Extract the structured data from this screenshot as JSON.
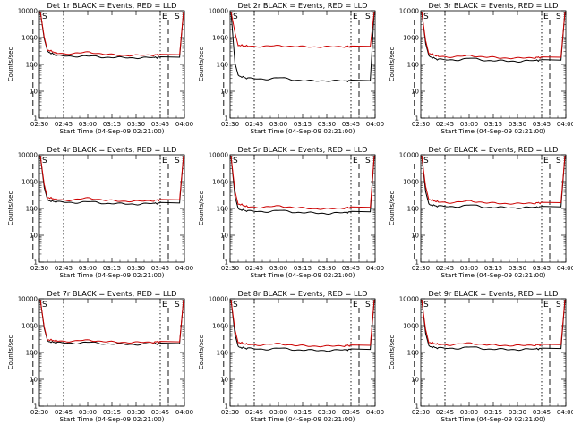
{
  "figure": {
    "xlabel": "Start Time (04-Sep-09 02:21:00)",
    "ylabel": "Counts/sec"
  },
  "chart_data": [
    {
      "type": "line",
      "title": "Det 1r BLACK = Events, RED = LLD",
      "xlabel": "Start Time (04-Sep-09 02:21:00)",
      "ylabel": "Counts/sec",
      "x_ticks": [
        "02:30",
        "02:45",
        "03:00",
        "03:15",
        "03:30",
        "03:45",
        "04:00"
      ],
      "x_range_min": [
        9,
        99
      ],
      "y_ticks": [
        "1",
        "10",
        "100",
        "1000",
        "10000"
      ],
      "ylim": [
        1,
        10000
      ],
      "yscale": "log",
      "markers": [
        "E",
        "S"
      ],
      "series": [
        {
          "label": "BLACK = Events",
          "color": "#000000",
          "x": [
            14,
            20,
            30,
            40,
            50,
            60,
            70,
            80,
            84
          ],
          "values": [
            300,
            210,
            200,
            205,
            185,
            180,
            175,
            180,
            185
          ]
        },
        {
          "label": "RED = LLD",
          "color": "#cc0000",
          "x": [
            14,
            20,
            30,
            40,
            50,
            60,
            70,
            80,
            84
          ],
          "values": [
            350,
            260,
            250,
            290,
            235,
            220,
            215,
            225,
            230
          ]
        }
      ]
    },
    {
      "type": "line",
      "title": "Det 2r BLACK = Events, RED = LLD",
      "xlabel": "Start Time (04-Sep-09 02:21:00)",
      "ylabel": "Counts/sec",
      "x_ticks": [
        "02:30",
        "02:45",
        "03:00",
        "03:15",
        "03:30",
        "03:45",
        "04:00"
      ],
      "x_range_min": [
        9,
        99
      ],
      "y_ticks": [
        "1",
        "10",
        "100",
        "1000",
        "10000"
      ],
      "ylim": [
        1,
        10000
      ],
      "yscale": "log",
      "markers": [
        "E",
        "S"
      ],
      "series": [
        {
          "label": "BLACK = Events",
          "color": "#000000",
          "x": [
            14,
            20,
            30,
            40,
            50,
            60,
            70,
            80,
            84
          ],
          "values": [
            38,
            30,
            28,
            32,
            26,
            24,
            25,
            24,
            25
          ]
        },
        {
          "label": "RED = LLD",
          "color": "#cc0000",
          "x": [
            14,
            20,
            30,
            40,
            50,
            60,
            70,
            80,
            84
          ],
          "values": [
            520,
            480,
            470,
            500,
            460,
            455,
            450,
            465,
            470
          ]
        }
      ]
    },
    {
      "type": "line",
      "title": "Det 3r BLACK = Events, RED = LLD",
      "xlabel": "Start Time (04-Sep-09 02:21:00)",
      "ylabel": "Counts/sec",
      "x_ticks": [
        "02:30",
        "02:45",
        "03:00",
        "03:15",
        "03:30",
        "03:45",
        "04:00"
      ],
      "x_range_min": [
        9,
        99
      ],
      "y_ticks": [
        "1",
        "10",
        "100",
        "1000",
        "10000"
      ],
      "ylim": [
        1,
        10000
      ],
      "yscale": "log",
      "markers": [
        "E",
        "S"
      ],
      "series": [
        {
          "label": "BLACK = Events",
          "color": "#000000",
          "x": [
            14,
            20,
            30,
            40,
            50,
            60,
            70,
            80,
            84
          ],
          "values": [
            200,
            150,
            145,
            170,
            140,
            135,
            130,
            140,
            145
          ]
        },
        {
          "label": "RED = LLD",
          "color": "#cc0000",
          "x": [
            14,
            20,
            30,
            40,
            50,
            60,
            70,
            80,
            84
          ],
          "values": [
            260,
            200,
            190,
            215,
            185,
            175,
            170,
            180,
            185
          ]
        }
      ]
    },
    {
      "type": "line",
      "title": "Det 4r BLACK = Events, RED = LLD",
      "xlabel": "Start Time (04-Sep-09 02:21:00)",
      "ylabel": "Counts/sec",
      "x_ticks": [
        "02:30",
        "02:45",
        "03:00",
        "03:15",
        "03:30",
        "03:45",
        "04:00"
      ],
      "x_range_min": [
        9,
        99
      ],
      "y_ticks": [
        "1",
        "10",
        "100",
        "1000",
        "10000"
      ],
      "ylim": [
        1,
        10000
      ],
      "yscale": "log",
      "markers": [
        "E",
        "S"
      ],
      "series": [
        {
          "label": "BLACK = Events",
          "color": "#000000",
          "x": [
            14,
            20,
            30,
            40,
            50,
            60,
            70,
            80,
            84
          ],
          "values": [
            200,
            175,
            165,
            180,
            155,
            150,
            145,
            155,
            160
          ]
        },
        {
          "label": "RED = LLD",
          "color": "#cc0000",
          "x": [
            14,
            20,
            30,
            40,
            50,
            60,
            70,
            80,
            84
          ],
          "values": [
            260,
            215,
            205,
            250,
            200,
            190,
            185,
            200,
            210
          ]
        }
      ]
    },
    {
      "type": "line",
      "title": "Det 5r BLACK = Events, RED = LLD",
      "xlabel": "Start Time (04-Sep-09 02:21:00)",
      "ylabel": "Counts/sec",
      "x_ticks": [
        "02:30",
        "02:45",
        "03:00",
        "03:15",
        "03:30",
        "03:45",
        "04:00"
      ],
      "x_range_min": [
        9,
        99
      ],
      "y_ticks": [
        "1",
        "10",
        "100",
        "1000",
        "10000"
      ],
      "ylim": [
        1,
        10000
      ],
      "yscale": "log",
      "markers": [
        "E",
        "S"
      ],
      "series": [
        {
          "label": "BLACK = Events",
          "color": "#000000",
          "x": [
            14,
            20,
            30,
            40,
            50,
            60,
            70,
            80,
            84
          ],
          "values": [
            95,
            80,
            75,
            85,
            72,
            68,
            65,
            70,
            75
          ]
        },
        {
          "label": "RED = LLD",
          "color": "#cc0000",
          "x": [
            14,
            20,
            30,
            40,
            50,
            60,
            70,
            80,
            84
          ],
          "values": [
            150,
            115,
            110,
            125,
            105,
            100,
            95,
            105,
            110
          ]
        }
      ]
    },
    {
      "type": "line",
      "title": "Det 6r BLACK = Events, RED = LLD",
      "xlabel": "Start Time (04-Sep-09 02:21:00)",
      "ylabel": "Counts/sec",
      "x_ticks": [
        "02:30",
        "02:45",
        "03:00",
        "03:15",
        "03:30",
        "03:45",
        "04:00"
      ],
      "x_range_min": [
        9,
        99
      ],
      "y_ticks": [
        "1",
        "10",
        "100",
        "1000",
        "10000"
      ],
      "ylim": [
        1,
        10000
      ],
      "yscale": "log",
      "markers": [
        "E",
        "S"
      ],
      "series": [
        {
          "label": "BLACK = Events",
          "color": "#000000",
          "x": [
            14,
            20,
            30,
            40,
            50,
            60,
            70,
            80,
            84
          ],
          "values": [
            140,
            120,
            115,
            135,
            110,
            108,
            105,
            110,
            115
          ]
        },
        {
          "label": "RED = LLD",
          "color": "#cc0000",
          "x": [
            14,
            20,
            30,
            40,
            50,
            60,
            70,
            80,
            84
          ],
          "values": [
            220,
            175,
            165,
            195,
            160,
            155,
            150,
            160,
            165
          ]
        }
      ]
    },
    {
      "type": "line",
      "title": "Det 7r BLACK = Events, RED = LLD",
      "xlabel": "Start Time (04-Sep-09 02:21:00)",
      "ylabel": "Counts/sec",
      "x_ticks": [
        "02:30",
        "02:45",
        "03:00",
        "03:15",
        "03:30",
        "03:45",
        "04:00"
      ],
      "x_range_min": [
        9,
        99
      ],
      "y_ticks": [
        "1",
        "10",
        "100",
        "1000",
        "10000"
      ],
      "ylim": [
        1,
        10000
      ],
      "yscale": "log",
      "markers": [
        "E",
        "S"
      ],
      "series": [
        {
          "label": "BLACK = Events",
          "color": "#000000",
          "x": [
            14,
            20,
            30,
            40,
            50,
            60,
            70,
            80,
            84
          ],
          "values": [
            260,
            230,
            220,
            240,
            210,
            205,
            200,
            210,
            215
          ]
        },
        {
          "label": "RED = LLD",
          "color": "#cc0000",
          "x": [
            14,
            20,
            30,
            40,
            50,
            60,
            70,
            80,
            84
          ],
          "values": [
            300,
            270,
            260,
            290,
            250,
            240,
            235,
            245,
            250
          ]
        }
      ]
    },
    {
      "type": "line",
      "title": "Det 8r BLACK = Events, RED = LLD",
      "xlabel": "Start Time (04-Sep-09 02:21:00)",
      "ylabel": "Counts/sec",
      "x_ticks": [
        "02:30",
        "02:45",
        "03:00",
        "03:15",
        "03:30",
        "03:45",
        "04:00"
      ],
      "x_range_min": [
        9,
        99
      ],
      "y_ticks": [
        "1",
        "10",
        "100",
        "1000",
        "10000"
      ],
      "ylim": [
        1,
        10000
      ],
      "yscale": "log",
      "markers": [
        "E",
        "S"
      ],
      "series": [
        {
          "label": "BLACK = Events",
          "color": "#000000",
          "x": [
            14,
            20,
            30,
            40,
            50,
            60,
            70,
            80,
            84
          ],
          "values": [
            160,
            140,
            130,
            145,
            125,
            120,
            118,
            125,
            130
          ]
        },
        {
          "label": "RED = LLD",
          "color": "#cc0000",
          "x": [
            14,
            20,
            30,
            40,
            50,
            60,
            70,
            80,
            84
          ],
          "values": [
            240,
            200,
            190,
            215,
            180,
            175,
            170,
            180,
            185
          ]
        }
      ]
    },
    {
      "type": "line",
      "title": "Det 9r BLACK = Events, RED = LLD",
      "xlabel": "Start Time (04-Sep-09 02:21:00)",
      "ylabel": "Counts/sec",
      "x_ticks": [
        "02:30",
        "02:45",
        "03:00",
        "03:15",
        "03:30",
        "03:45",
        "04:00"
      ],
      "x_range_min": [
        9,
        99
      ],
      "y_ticks": [
        "1",
        "10",
        "100",
        "1000",
        "10000"
      ],
      "ylim": [
        1,
        10000
      ],
      "yscale": "log",
      "markers": [
        "E",
        "S"
      ],
      "series": [
        {
          "label": "BLACK = Events",
          "color": "#000000",
          "x": [
            14,
            20,
            30,
            40,
            50,
            60,
            70,
            80,
            84
          ],
          "values": [
            170,
            145,
            140,
            160,
            135,
            130,
            128,
            135,
            140
          ]
        },
        {
          "label": "RED = LLD",
          "color": "#cc0000",
          "x": [
            14,
            20,
            30,
            40,
            50,
            60,
            70,
            80,
            84
          ],
          "values": [
            240,
            200,
            195,
            225,
            190,
            185,
            180,
            190,
            195
          ]
        }
      ]
    }
  ]
}
